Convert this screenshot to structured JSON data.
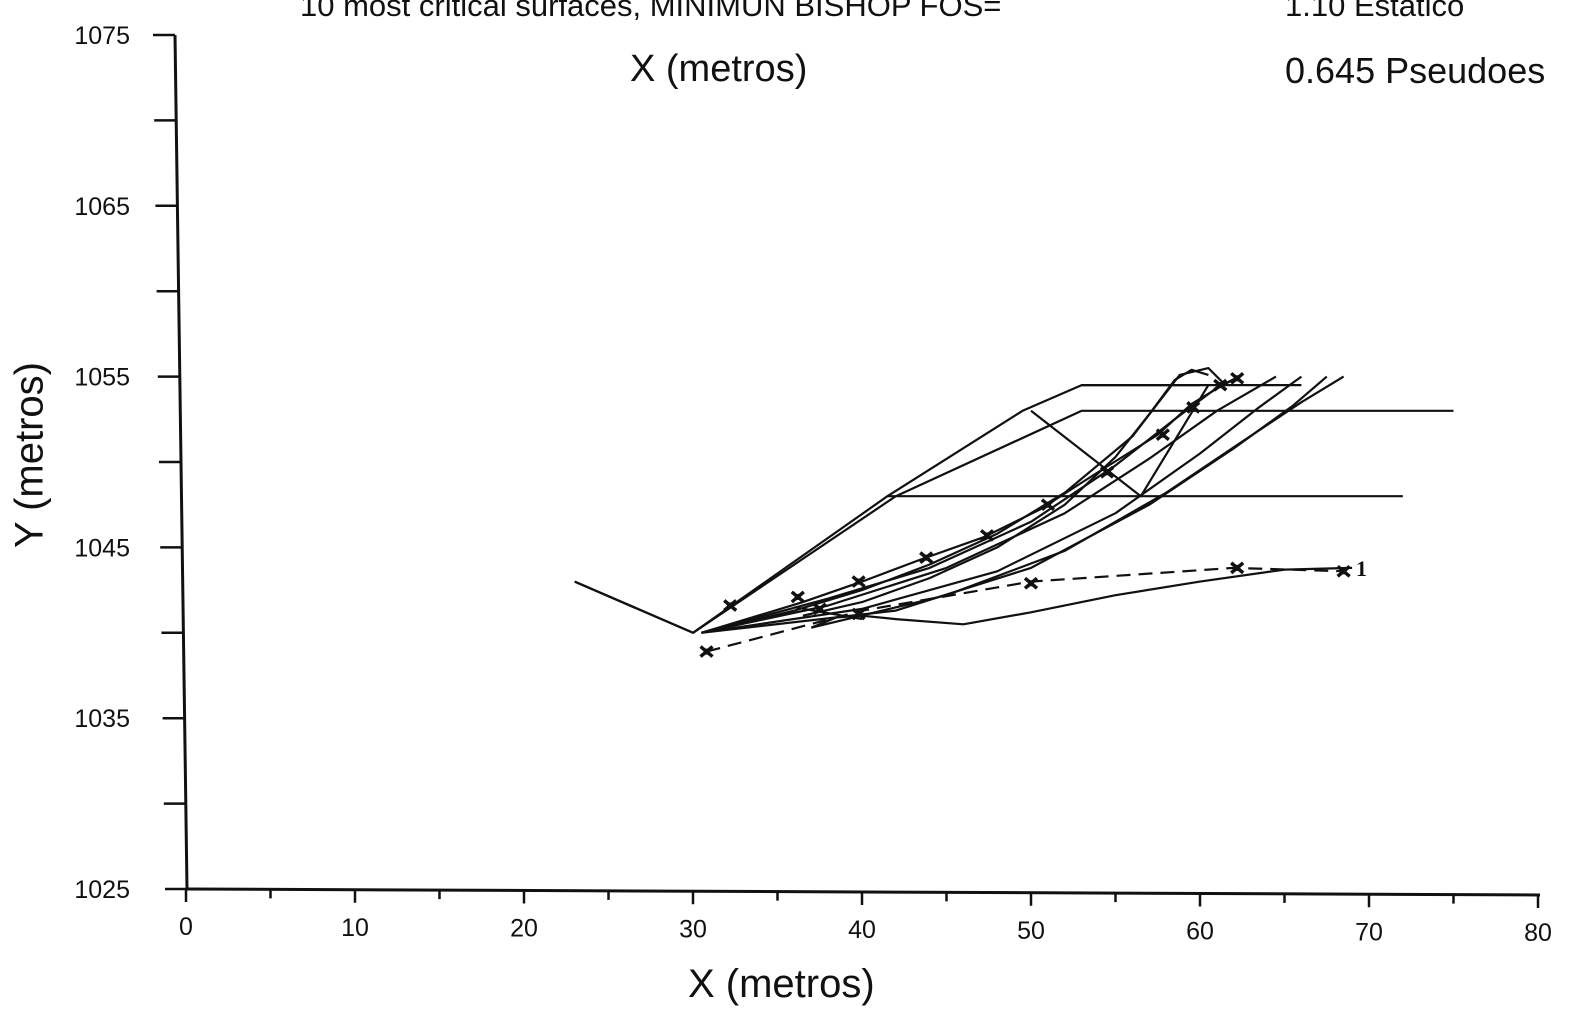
{
  "chart_data": {
    "type": "line",
    "title": "10 most critical surfaces, MINIMUN BISHOP FOS=",
    "fos_static": "1.10 Estático",
    "fos_pseudo": "0.645 Pseudoes",
    "x_label_top": "X (metros)",
    "xlabel": "X (metros)",
    "ylabel": "Y (metros)",
    "xlim": [
      0,
      80
    ],
    "ylim": [
      1025,
      1075
    ],
    "x_ticks": [
      "0",
      "10",
      "20",
      "30",
      "40",
      "50",
      "60",
      "70",
      "80"
    ],
    "y_ticks": [
      "1025",
      "1035",
      "1045",
      "1055",
      "1065",
      "1075"
    ],
    "annotation": "1",
    "grid": false,
    "series": [
      {
        "x": [
          23,
          30,
          41.5,
          72
        ],
        "y": [
          1043,
          1040,
          1048,
          1048
        ]
      },
      {
        "x": [
          30,
          42,
          53,
          75
        ],
        "y": [
          1040,
          1048,
          1053,
          1053
        ]
      },
      {
        "x": [
          41.5,
          49.5,
          53,
          66
        ],
        "y": [
          1048,
          1053,
          1054.5,
          1054.5
        ]
      },
      {
        "x": [
          50,
          56.5,
          60.5
        ],
        "y": [
          1053,
          1048,
          1054.5
        ]
      },
      {
        "x": [
          53,
          60
        ],
        "y": [
          1054.5,
          1054.5
        ]
      },
      {
        "x": [
          36,
          40
        ],
        "y": [
          1041.5,
          1040.8
        ]
      },
      {
        "x": [
          30.5,
          36.5,
          40,
          43.5,
          47.2,
          50.5,
          53.8,
          57.5,
          59.5,
          61.5,
          62.3
        ],
        "y": [
          1040,
          1041.8,
          1043,
          1044.3,
          1045.6,
          1047.2,
          1049.3,
          1051.6,
          1053.4,
          1054.6,
          1055
        ]
      },
      {
        "x": [
          30.5,
          36,
          40,
          44,
          48,
          52,
          56,
          58.8,
          60.5,
          61.5
        ],
        "y": [
          1040,
          1041.3,
          1042.5,
          1044,
          1045.8,
          1048.2,
          1051.5,
          1055.1,
          1055.5,
          1054.5
        ]
      },
      {
        "x": [
          36.5,
          40,
          44,
          48,
          52,
          55,
          57,
          58.5,
          59.5,
          60.5
        ],
        "y": [
          1041,
          1041.8,
          1043.2,
          1045,
          1047.5,
          1050.3,
          1052.8,
          1054.8,
          1055.4,
          1055.1
        ]
      },
      {
        "x": [
          30.5,
          38,
          44,
          50,
          55,
          58.5,
          60.8,
          62.3
        ],
        "y": [
          1040,
          1042,
          1043.8,
          1046.5,
          1049.8,
          1052.5,
          1054.2,
          1055
        ]
      },
      {
        "x": [
          30.5,
          38,
          45,
          52,
          57,
          61,
          64.5
        ],
        "y": [
          1040,
          1041.6,
          1043.8,
          1047,
          1050.2,
          1053,
          1055
        ]
      },
      {
        "x": [
          30.5,
          40,
          48,
          55,
          60,
          63.5,
          66
        ],
        "y": [
          1040,
          1041.4,
          1043.6,
          1047,
          1050.5,
          1053.2,
          1055
        ]
      },
      {
        "x": [
          30.5,
          42,
          50,
          57,
          62,
          65.5,
          67.5
        ],
        "y": [
          1040,
          1041.3,
          1043.8,
          1047.5,
          1050.8,
          1053.3,
          1055
        ]
      },
      {
        "x": [
          37,
          45,
          52,
          58,
          62.5,
          66,
          68.5
        ],
        "y": [
          1040.3,
          1042.2,
          1044.8,
          1048.2,
          1051.2,
          1053.5,
          1055
        ]
      },
      {
        "x": [
          37,
          38.5,
          40,
          42,
          46,
          50,
          55,
          60,
          65,
          69
        ],
        "y": [
          1040.3,
          1040.9,
          1041,
          1040.8,
          1040.5,
          1041.2,
          1042.2,
          1043,
          1043.7,
          1043.8
        ]
      },
      {
        "x": [
          30.8,
          40,
          50,
          62,
          68.5
        ],
        "y": [
          1038.9,
          1041.3,
          1043,
          1043.8,
          1043.6
        ]
      },
      {
        "x": [
          23,
          30
        ],
        "y": [
          1043,
          1040
        ]
      }
    ],
    "points": {
      "x": [
        32.2,
        36.2,
        37.5,
        39.8,
        43.8,
        47.4,
        51,
        54.5,
        57.8,
        59.6,
        61.2,
        62.2,
        30.8,
        39.8,
        50,
        62.2,
        68.5
      ],
      "y": [
        1041.6,
        1042.1,
        1041.4,
        1043,
        1044.4,
        1045.7,
        1047.5,
        1049.4,
        1051.6,
        1053.2,
        1054.5,
        1054.9,
        1038.9,
        1041.1,
        1042.9,
        1043.8,
        1043.6
      ]
    }
  }
}
